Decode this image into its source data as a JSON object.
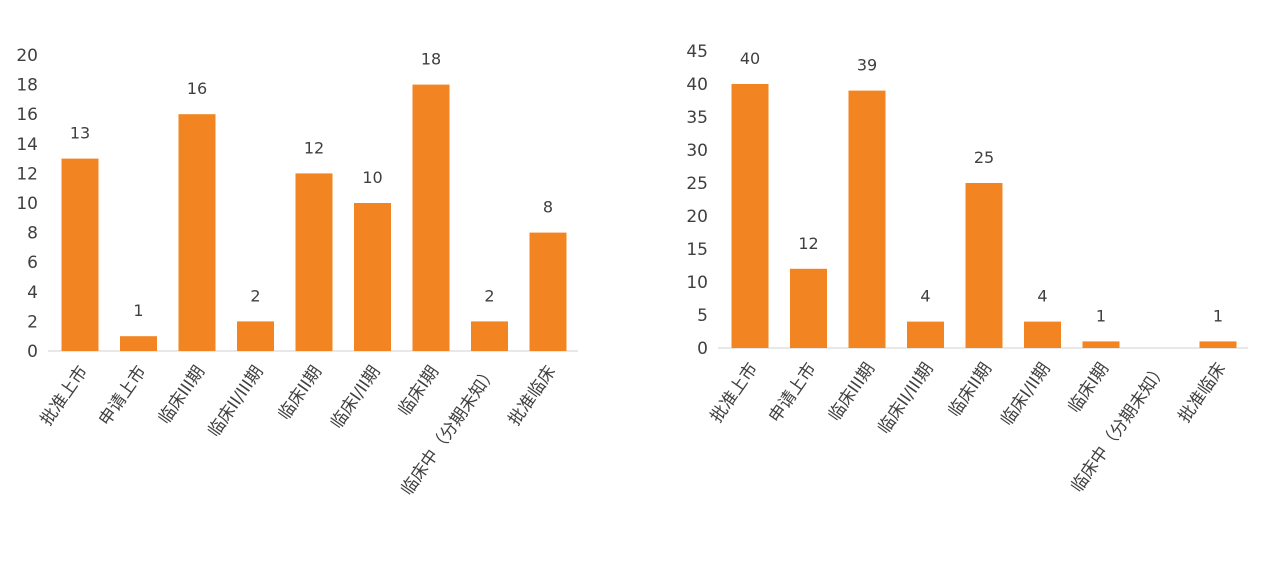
{
  "chart_data": [
    {
      "type": "bar",
      "categories": [
        "批准上市",
        "申请上市",
        "临床III期",
        "临床II/III期",
        "临床II期",
        "临床I/II期",
        "临床I期",
        "临床中（分期未知）",
        "批准临床"
      ],
      "values": [
        13,
        1,
        16,
        2,
        12,
        10,
        18,
        2,
        8
      ],
      "title": "",
      "xlabel": "",
      "ylabel": "",
      "ylim": [
        0,
        20
      ],
      "yticks": [
        0,
        2,
        4,
        6,
        8,
        10,
        12,
        14,
        16,
        18,
        20
      ],
      "grid": false,
      "legend": "none",
      "bar_color": "#f28522"
    },
    {
      "type": "bar",
      "categories": [
        "批准上市",
        "申请上市",
        "临床III期",
        "临床II/III期",
        "临床II期",
        "临床I/II期",
        "临床I期",
        "临床中（分期未知）",
        "批准临床"
      ],
      "values": [
        40,
        12,
        39,
        4,
        25,
        4,
        1,
        null,
        1
      ],
      "title": "",
      "xlabel": "",
      "ylabel": "",
      "ylim": [
        0,
        45
      ],
      "yticks": [
        0,
        5,
        10,
        15,
        20,
        25,
        30,
        35,
        40,
        45
      ],
      "grid": false,
      "legend": "none",
      "bar_color": "#f28522"
    }
  ]
}
